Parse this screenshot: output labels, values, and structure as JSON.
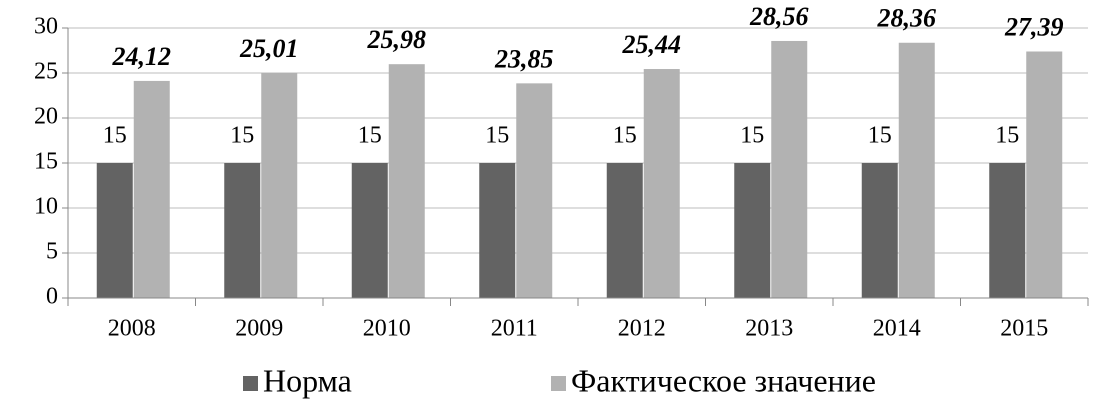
{
  "chart_data": {
    "type": "bar",
    "categories": [
      "2008",
      "2009",
      "2010",
      "2011",
      "2012",
      "2013",
      "2014",
      "2015"
    ],
    "series": [
      {
        "name": "Норма",
        "color": "#636363",
        "values": [
          15,
          15,
          15,
          15,
          15,
          15,
          15,
          15
        ]
      },
      {
        "name": "Фактическое значение",
        "color": "#b2b2b2",
        "values": [
          24.12,
          25.01,
          25.98,
          23.85,
          25.44,
          28.56,
          28.36,
          27.39
        ],
        "value_labels": [
          "24,12",
          "25,01",
          "25,98",
          "23,85",
          "25,44",
          "28,56",
          "28,36",
          "27,39"
        ]
      }
    ],
    "ylim": [
      0,
      30
    ],
    "yticks": [
      0,
      5,
      10,
      15,
      20,
      25,
      30
    ],
    "grid": true,
    "legend": "bottom"
  }
}
